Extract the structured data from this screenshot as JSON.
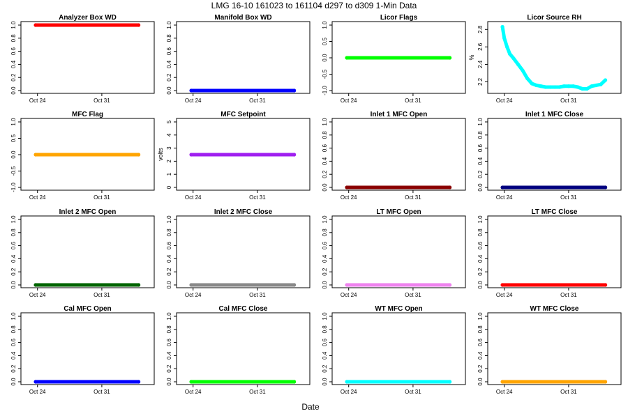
{
  "figure": {
    "title": "LMG  16-10    161023 to 161104    d297 to d309   1-Min Data",
    "xlabel": "Date"
  },
  "chart_data": [
    {
      "type": "scatter",
      "title": "Analyzer Box WD",
      "ylabel": "",
      "color": "#ff0000",
      "ylim": [
        0,
        1
      ],
      "yticks": [
        "0.0",
        "0.2",
        "0.4",
        "0.6",
        "0.8",
        "1.0"
      ],
      "xticks": [
        "Oct 24",
        "Oct 31"
      ],
      "x_days": [
        23.8,
        35.0
      ],
      "y": [
        1,
        1
      ]
    },
    {
      "type": "scatter",
      "title": "Manifold Box WD",
      "ylabel": "",
      "color": "#0000ff",
      "ylim": [
        0,
        1
      ],
      "yticks": [
        "0.0",
        "0.2",
        "0.4",
        "0.6",
        "0.8",
        "1.0"
      ],
      "xticks": [
        "Oct 24",
        "Oct 31"
      ],
      "x_days": [
        23.8,
        35.0
      ],
      "y": [
        0,
        0
      ]
    },
    {
      "type": "scatter",
      "title": "Licor Flags",
      "ylabel": "",
      "color": "#00ff00",
      "ylim": [
        -1,
        1
      ],
      "yticks": [
        "-1.0",
        "-0.5",
        "0.0",
        "0.5",
        "1.0"
      ],
      "xticks": [
        "Oct 24",
        "Oct 31"
      ],
      "x_days": [
        23.8,
        35.0
      ],
      "y": [
        0,
        0
      ]
    },
    {
      "type": "scatter",
      "title": "Licor Source RH",
      "ylabel": "%",
      "color": "#00ffff",
      "ylim": [
        2.1,
        2.85
      ],
      "yticks": [
        "2.2",
        "2.4",
        "2.6",
        "2.8"
      ],
      "xticks": [
        "Oct 24",
        "Oct 31"
      ],
      "x_days": [
        23.8,
        24.0,
        24.3,
        24.6,
        25.0,
        25.5,
        26.0,
        26.5,
        27.0,
        27.5,
        28.0,
        28.5,
        29.0,
        29.5,
        30.0,
        30.5,
        31.0,
        31.5,
        32.0,
        32.5,
        33.0,
        33.5,
        34.0,
        34.5,
        35.0
      ],
      "y": [
        2.83,
        2.7,
        2.6,
        2.52,
        2.47,
        2.4,
        2.33,
        2.24,
        2.18,
        2.16,
        2.15,
        2.14,
        2.14,
        2.14,
        2.14,
        2.15,
        2.15,
        2.15,
        2.14,
        2.12,
        2.12,
        2.15,
        2.16,
        2.17,
        2.22
      ]
    },
    {
      "type": "scatter",
      "title": "MFC Flag",
      "ylabel": "",
      "color": "#ffa500",
      "ylim": [
        -1,
        1
      ],
      "yticks": [
        "-1.0",
        "-0.5",
        "0.0",
        "0.5",
        "1.0"
      ],
      "xticks": [
        "Oct 24",
        "Oct 31"
      ],
      "x_days": [
        23.8,
        35.0
      ],
      "y": [
        0,
        0
      ]
    },
    {
      "type": "scatter",
      "title": "MFC Setpoint",
      "ylabel": "volts",
      "color": "#a020f0",
      "ylim": [
        0,
        5
      ],
      "yticks": [
        "0",
        "1",
        "2",
        "3",
        "4",
        "5"
      ],
      "xticks": [
        "Oct 24",
        "Oct 31"
      ],
      "x_days": [
        23.8,
        35.0
      ],
      "y": [
        2.5,
        2.5
      ]
    },
    {
      "type": "scatter",
      "title": "Inlet 1 MFC Open",
      "ylabel": "",
      "color": "#8b0000",
      "ylim": [
        0,
        1
      ],
      "yticks": [
        "0.0",
        "0.2",
        "0.4",
        "0.6",
        "0.8",
        "1.0"
      ],
      "xticks": [
        "Oct 24",
        "Oct 31"
      ],
      "x_days": [
        23.8,
        35.0
      ],
      "y": [
        0,
        0
      ]
    },
    {
      "type": "scatter",
      "title": "Inlet 1 MFC Close",
      "ylabel": "",
      "color": "#000080",
      "ylim": [
        0,
        1
      ],
      "yticks": [
        "0.0",
        "0.2",
        "0.4",
        "0.6",
        "0.8",
        "1.0"
      ],
      "xticks": [
        "Oct 24",
        "Oct 31"
      ],
      "x_days": [
        23.8,
        35.0
      ],
      "y": [
        0,
        0
      ]
    },
    {
      "type": "scatter",
      "title": "Inlet 2 MFC Open",
      "ylabel": "",
      "color": "#006400",
      "ylim": [
        0,
        1
      ],
      "yticks": [
        "0.0",
        "0.2",
        "0.4",
        "0.6",
        "0.8",
        "1.0"
      ],
      "xticks": [
        "Oct 24",
        "Oct 31"
      ],
      "x_days": [
        23.8,
        35.0
      ],
      "y": [
        0,
        0
      ]
    },
    {
      "type": "scatter",
      "title": "Inlet 2 MFC Close",
      "ylabel": "",
      "color": "#888888",
      "ylim": [
        0,
        1
      ],
      "yticks": [
        "0.0",
        "0.2",
        "0.4",
        "0.6",
        "0.8",
        "1.0"
      ],
      "xticks": [
        "Oct 24",
        "Oct 31"
      ],
      "x_days": [
        23.8,
        35.0
      ],
      "y": [
        0,
        0
      ]
    },
    {
      "type": "scatter",
      "title": "LT MFC Open",
      "ylabel": "",
      "color": "#ee82ee",
      "ylim": [
        0,
        1
      ],
      "yticks": [
        "0.0",
        "0.2",
        "0.4",
        "0.6",
        "0.8",
        "1.0"
      ],
      "xticks": [
        "Oct 24",
        "Oct 31"
      ],
      "x_days": [
        23.8,
        35.0
      ],
      "y": [
        0,
        0
      ]
    },
    {
      "type": "scatter",
      "title": "LT MFC Close",
      "ylabel": "",
      "color": "#ff0000",
      "ylim": [
        0,
        1
      ],
      "yticks": [
        "0.0",
        "0.2",
        "0.4",
        "0.6",
        "0.8",
        "1.0"
      ],
      "xticks": [
        "Oct 24",
        "Oct 31"
      ],
      "x_days": [
        23.8,
        35.0
      ],
      "y": [
        0,
        0
      ]
    },
    {
      "type": "scatter",
      "title": "Cal MFC Open",
      "ylabel": "",
      "color": "#0000ff",
      "ylim": [
        0,
        1
      ],
      "yticks": [
        "0.0",
        "0.2",
        "0.4",
        "0.6",
        "0.8",
        "1.0"
      ],
      "xticks": [
        "Oct 24",
        "Oct 31"
      ],
      "x_days": [
        23.8,
        35.0
      ],
      "y": [
        0,
        0
      ]
    },
    {
      "type": "scatter",
      "title": "Cal MFC Close",
      "ylabel": "",
      "color": "#00ff00",
      "ylim": [
        0,
        1
      ],
      "yticks": [
        "0.0",
        "0.2",
        "0.4",
        "0.6",
        "0.8",
        "1.0"
      ],
      "xticks": [
        "Oct 24",
        "Oct 31"
      ],
      "x_days": [
        23.8,
        35.0
      ],
      "y": [
        0,
        0
      ]
    },
    {
      "type": "scatter",
      "title": "WT MFC Open",
      "ylabel": "",
      "color": "#00ffff",
      "ylim": [
        0,
        1
      ],
      "yticks": [
        "0.0",
        "0.2",
        "0.4",
        "0.6",
        "0.8",
        "1.0"
      ],
      "xticks": [
        "Oct 24",
        "Oct 31"
      ],
      "x_days": [
        23.8,
        35.0
      ],
      "y": [
        0,
        0
      ]
    },
    {
      "type": "scatter",
      "title": "WT MFC Close",
      "ylabel": "",
      "color": "#ffa500",
      "ylim": [
        0,
        1
      ],
      "yticks": [
        "0.0",
        "0.2",
        "0.4",
        "0.6",
        "0.8",
        "1.0"
      ],
      "xticks": [
        "Oct 24",
        "Oct 31"
      ],
      "x_days": [
        23.8,
        35.0
      ],
      "y": [
        0,
        0
      ]
    }
  ]
}
